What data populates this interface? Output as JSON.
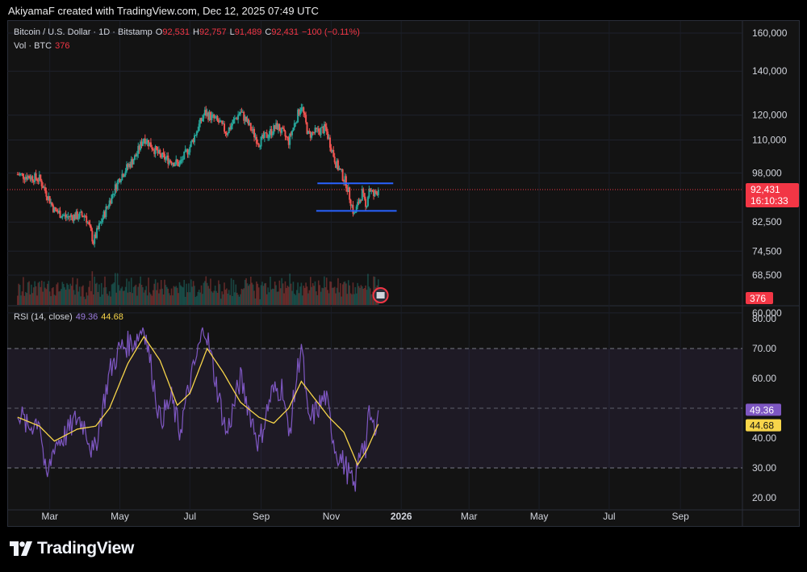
{
  "header": {
    "creator_line": "AkiyamaF created with TradingView.com, Dec 12, 2025 07:49 UTC"
  },
  "legend": {
    "symbol": "Bitcoin / U.S. Dollar · 1D · Bitstamp",
    "o_label": "O",
    "o_value": "92,531",
    "h_label": "H",
    "h_value": "92,757",
    "l_label": "L",
    "l_value": "91,489",
    "c_label": "C",
    "c_value": "92,431",
    "change": "−100 (−0.11%)",
    "vol_label": "Vol · BTC",
    "vol_value": "376",
    "rsi_label": "RSI (14, close)",
    "rsi_value": "49.36",
    "rsi_ma_value": "44.68"
  },
  "price_badge": {
    "price": "92,431",
    "countdown": "16:10:33"
  },
  "volume_badge": "376",
  "rsi_badges": {
    "rsi": "49.36",
    "ma": "44.68"
  },
  "colors": {
    "up": "#26a69a",
    "down": "#ef5350",
    "rsi": "#7e57c2",
    "rsi_ma": "#f7d54a",
    "level_line": "#2962ff",
    "price_line": "#f23645"
  },
  "chart_data": [
    {
      "type": "candlestick",
      "title": "Bitcoin / U.S. Dollar · 1D · Bitstamp",
      "y_scale": "log",
      "y_ticks": [
        "160,000",
        "140,000",
        "120,000",
        "110,000",
        "98,000",
        "82,500",
        "74,500",
        "68,500",
        "60,000"
      ],
      "y_tick_values": [
        160000,
        140000,
        120000,
        110000,
        98000,
        82500,
        74500,
        68500,
        60000
      ],
      "x_ticks": [
        "Mar",
        "May",
        "Jul",
        "Sep",
        "Nov",
        "2026",
        "Mar",
        "May",
        "Jul",
        "Sep"
      ],
      "last_close": 92431,
      "horizontal_levels": [
        {
          "value": 94500,
          "from": "Oct 20, 2025",
          "to": "Dec 25, 2025"
        },
        {
          "value": 85800,
          "from": "Oct 19, 2025",
          "to": "Dec 28, 2025"
        }
      ],
      "daily_closes_anchors": [
        {
          "date": "Feb 01, 2025",
          "close": 97500
        },
        {
          "date": "Feb 20, 2025",
          "close": 96000
        },
        {
          "date": "Mar 05, 2025",
          "close": 86000
        },
        {
          "date": "Mar 15, 2025",
          "close": 84000
        },
        {
          "date": "Apr 01, 2025",
          "close": 84500
        },
        {
          "date": "Apr 08, 2025",
          "close": 77000
        },
        {
          "date": "Apr 20, 2025",
          "close": 87000
        },
        {
          "date": "May 01, 2025",
          "close": 96500
        },
        {
          "date": "May 15, 2025",
          "close": 104000
        },
        {
          "date": "May 22, 2025",
          "close": 111000
        },
        {
          "date": "Jun 05, 2025",
          "close": 104000
        },
        {
          "date": "Jun 22, 2025",
          "close": 101000
        },
        {
          "date": "Jul 01, 2025",
          "close": 107500
        },
        {
          "date": "Jul 14, 2025",
          "close": 121000
        },
        {
          "date": "Jul 25, 2025",
          "close": 117500
        },
        {
          "date": "Aug 02, 2025",
          "close": 113000
        },
        {
          "date": "Aug 14, 2025",
          "close": 121500
        },
        {
          "date": "Aug 30, 2025",
          "close": 109000
        },
        {
          "date": "Sep 15, 2025",
          "close": 115500
        },
        {
          "date": "Sep 25, 2025",
          "close": 109500
        },
        {
          "date": "Oct 06, 2025",
          "close": 124500
        },
        {
          "date": "Oct 12, 2025",
          "close": 112000
        },
        {
          "date": "Oct 27, 2025",
          "close": 114500
        },
        {
          "date": "Nov 05, 2025",
          "close": 101500
        },
        {
          "date": "Nov 14, 2025",
          "close": 94500
        },
        {
          "date": "Nov 21, 2025",
          "close": 84500
        },
        {
          "date": "Nov 28, 2025",
          "close": 91500
        },
        {
          "date": "Dec 01, 2025",
          "close": 86500
        },
        {
          "date": "Dec 04, 2025",
          "close": 93000
        },
        {
          "date": "Dec 08, 2025",
          "close": 90500
        },
        {
          "date": "Dec 12, 2025",
          "close": 92431
        }
      ]
    },
    {
      "type": "line",
      "title": "RSI (14, close)",
      "ylim": [
        20,
        80
      ],
      "y_ticks": [
        "80.00",
        "70.00",
        "60.00",
        "50.00",
        "40.00",
        "30.00",
        "20.00"
      ],
      "y_tick_values": [
        80,
        70,
        60,
        50,
        40,
        30,
        20
      ],
      "band": [
        30,
        70
      ],
      "series": [
        {
          "name": "RSI",
          "points": [
            {
              "date": "Feb 01, 2025",
              "value": 50
            },
            {
              "date": "Feb 10, 2025",
              "value": 43
            },
            {
              "date": "Feb 20, 2025",
              "value": 47
            },
            {
              "date": "Feb 26, 2025",
              "value": 25
            },
            {
              "date": "Mar 05, 2025",
              "value": 38
            },
            {
              "date": "Mar 15, 2025",
              "value": 41
            },
            {
              "date": "Mar 25, 2025",
              "value": 47
            },
            {
              "date": "Apr 01, 2025",
              "value": 44
            },
            {
              "date": "Apr 08, 2025",
              "value": 34
            },
            {
              "date": "Apr 22, 2025",
              "value": 62
            },
            {
              "date": "May 01, 2025",
              "value": 70
            },
            {
              "date": "May 15, 2025",
              "value": 73
            },
            {
              "date": "May 22, 2025",
              "value": 78
            },
            {
              "date": "Jun 05, 2025",
              "value": 46
            },
            {
              "date": "Jun 15, 2025",
              "value": 53
            },
            {
              "date": "Jun 22, 2025",
              "value": 42
            },
            {
              "date": "Jul 01, 2025",
              "value": 58
            },
            {
              "date": "Jul 10, 2025",
              "value": 72
            },
            {
              "date": "Jul 14, 2025",
              "value": 78
            },
            {
              "date": "Jul 25, 2025",
              "value": 56
            },
            {
              "date": "Aug 02, 2025",
              "value": 41
            },
            {
              "date": "Aug 14, 2025",
              "value": 60
            },
            {
              "date": "Aug 30, 2025",
              "value": 38
            },
            {
              "date": "Sep 10, 2025",
              "value": 55
            },
            {
              "date": "Sep 20, 2025",
              "value": 57
            },
            {
              "date": "Sep 25, 2025",
              "value": 40
            },
            {
              "date": "Oct 06, 2025",
              "value": 72
            },
            {
              "date": "Oct 12, 2025",
              "value": 45
            },
            {
              "date": "Oct 27, 2025",
              "value": 54
            },
            {
              "date": "Nov 05, 2025",
              "value": 36
            },
            {
              "date": "Nov 14, 2025",
              "value": 30
            },
            {
              "date": "Nov 21, 2025",
              "value": 23
            },
            {
              "date": "Nov 28, 2025",
              "value": 40
            },
            {
              "date": "Dec 01, 2025",
              "value": 36
            },
            {
              "date": "Dec 04, 2025",
              "value": 48
            },
            {
              "date": "Dec 08, 2025",
              "value": 43
            },
            {
              "date": "Dec 12, 2025",
              "value": 49.36
            }
          ]
        },
        {
          "name": "RSI MA",
          "points": [
            {
              "date": "Feb 01, 2025",
              "value": 47
            },
            {
              "date": "Feb 20, 2025",
              "value": 44
            },
            {
              "date": "Mar 05, 2025",
              "value": 39
            },
            {
              "date": "Mar 25, 2025",
              "value": 43
            },
            {
              "date": "Apr 10, 2025",
              "value": 44
            },
            {
              "date": "Apr 22, 2025",
              "value": 50
            },
            {
              "date": "May 08, 2025",
              "value": 65
            },
            {
              "date": "May 22, 2025",
              "value": 74
            },
            {
              "date": "Jun 05, 2025",
              "value": 66
            },
            {
              "date": "Jun 20, 2025",
              "value": 51
            },
            {
              "date": "Jul 01, 2025",
              "value": 55
            },
            {
              "date": "Jul 16, 2025",
              "value": 70
            },
            {
              "date": "Jul 30, 2025",
              "value": 62
            },
            {
              "date": "Aug 14, 2025",
              "value": 52
            },
            {
              "date": "Aug 30, 2025",
              "value": 47
            },
            {
              "date": "Sep 12, 2025",
              "value": 45
            },
            {
              "date": "Sep 25, 2025",
              "value": 50
            },
            {
              "date": "Oct 06, 2025",
              "value": 59
            },
            {
              "date": "Oct 18, 2025",
              "value": 53
            },
            {
              "date": "Oct 30, 2025",
              "value": 47
            },
            {
              "date": "Nov 12, 2025",
              "value": 42
            },
            {
              "date": "Nov 24, 2025",
              "value": 31
            },
            {
              "date": "Dec 02, 2025",
              "value": 36
            },
            {
              "date": "Dec 12, 2025",
              "value": 44.68
            }
          ]
        }
      ]
    }
  ],
  "footer": {
    "brand": "TradingView"
  }
}
